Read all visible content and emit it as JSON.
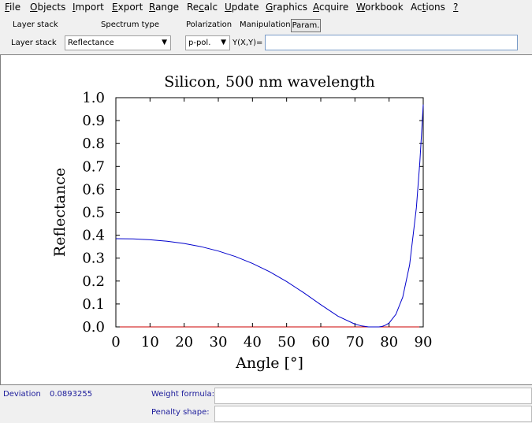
{
  "menu": {
    "file": {
      "u": "F",
      "rest": "ile"
    },
    "objects": {
      "u": "O",
      "rest": "bjects"
    },
    "import": {
      "u": "I",
      "rest": "mport"
    },
    "export": {
      "u": "E",
      "rest": "xport"
    },
    "range": {
      "u": "R",
      "rest": "ange"
    },
    "recalc": {
      "pre": "Re",
      "u": "c",
      "rest": "alc"
    },
    "update": {
      "u": "U",
      "rest": "pdate"
    },
    "graphics": {
      "u": "G",
      "rest": "raphics"
    },
    "acquire": {
      "u": "A",
      "rest": "cquire"
    },
    "workbook": {
      "u": "W",
      "rest": "orkbook"
    },
    "actions": {
      "pre": "Ac",
      "u": "t",
      "rest": "ions"
    },
    "help": {
      "u": "?"
    }
  },
  "toolbar": {
    "layer_stack_header": "Layer stack",
    "spectrum_type_header": "Spectrum type",
    "polarization_header": "Polarization",
    "manipulation_header": "Manipulation",
    "param_button": "Param.",
    "layer_stack_label": "Layer stack",
    "spectrum_type_value": "Reflectance",
    "polarization_value": "p-pol.",
    "formula_label": "Y(X,Y)=",
    "formula_value": ""
  },
  "status": {
    "deviation_label": "Deviation",
    "deviation_value": "0.0893255",
    "weight_formula_label": "Weight formula:",
    "weight_formula_value": "",
    "penalty_shape_label": "Penalty shape:",
    "penalty_shape_value": ""
  },
  "colors": {
    "curve": "#0000cc",
    "zero_line": "#cc0000",
    "status_text": "#1a1a9a"
  },
  "chart_data": {
    "type": "line",
    "title": "Silicon, 500 nm wavelength",
    "xlabel": "Angle [°]",
    "ylabel": "Reflectance",
    "xlim": [
      0,
      90
    ],
    "ylim": [
      0,
      1
    ],
    "xticks": [
      "0",
      "10",
      "20",
      "30",
      "40",
      "50",
      "60",
      "70",
      "80",
      "90"
    ],
    "yticks": [
      "0.0",
      "0.1",
      "0.2",
      "0.3",
      "0.4",
      "0.5",
      "0.6",
      "0.7",
      "0.8",
      "0.9",
      "1.0"
    ],
    "series": [
      {
        "x": [
          0,
          5,
          10,
          15,
          20,
          25,
          30,
          35,
          40,
          45,
          50,
          55,
          60,
          65,
          70,
          72,
          74,
          76,
          77,
          78,
          79,
          80,
          82,
          84,
          86,
          88,
          89,
          89.5,
          90
        ],
        "values": [
          0.385,
          0.384,
          0.38,
          0.374,
          0.364,
          0.35,
          0.331,
          0.307,
          0.277,
          0.241,
          0.198,
          0.149,
          0.097,
          0.047,
          0.012,
          0.004,
          0.0,
          0.0,
          0.0,
          0.002,
          0.008,
          0.017,
          0.055,
          0.13,
          0.27,
          0.52,
          0.72,
          0.84,
          0.97
        ]
      }
    ],
    "grid": false
  }
}
